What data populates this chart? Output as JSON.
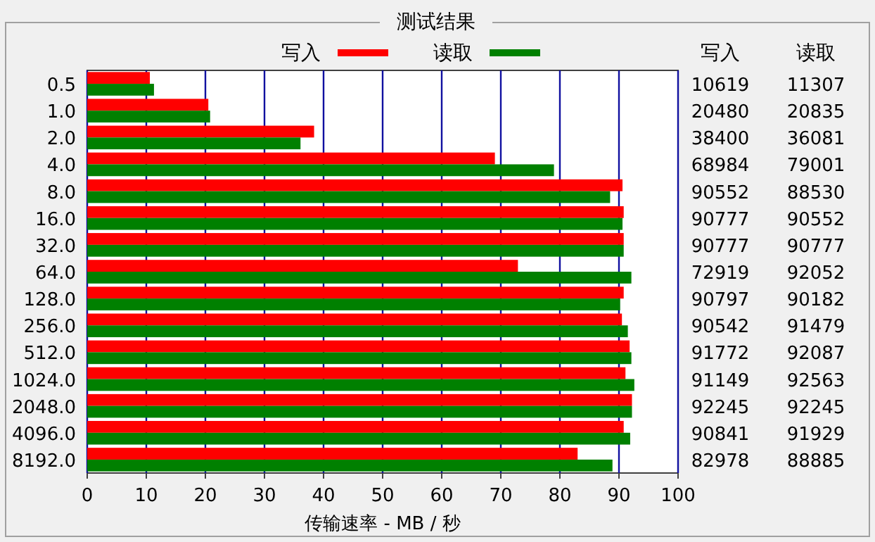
{
  "chart_data": {
    "type": "bar",
    "orientation": "horizontal",
    "title": "测试结果",
    "xlabel": "传输速率 - MB / 秒",
    "categories": [
      "0.5",
      "1.0",
      "2.0",
      "4.0",
      "8.0",
      "16.0",
      "32.0",
      "64.0",
      "128.0",
      "256.0",
      "512.0",
      "1024.0",
      "2048.0",
      "4096.0",
      "8192.0"
    ],
    "series": [
      {
        "name": "写入",
        "color": "#ff0000",
        "values": [
          10.6,
          20.5,
          38.4,
          69.0,
          90.6,
          90.8,
          90.8,
          72.9,
          90.8,
          90.5,
          91.8,
          91.1,
          92.2,
          90.8,
          83.0
        ]
      },
      {
        "name": "读取",
        "color": "#008000",
        "values": [
          11.3,
          20.8,
          36.1,
          79.0,
          88.5,
          90.6,
          90.8,
          92.1,
          90.2,
          91.5,
          92.1,
          92.6,
          92.2,
          91.9,
          88.9
        ]
      }
    ],
    "annotations": [
      "10619",
      "20480",
      "38400",
      "68984",
      "90552",
      "90777",
      "90777",
      "72919",
      "90797",
      "90542",
      "91772",
      "91149",
      "92245",
      "90841",
      "82978",
      "11307",
      "20835",
      "36081",
      "79001",
      "88530",
      "90552",
      "90777",
      "92052",
      "90182",
      "91479",
      "92087",
      "92563",
      "92245",
      "91929",
      "88885"
    ],
    "xlim": [
      0,
      100
    ],
    "xticks": [
      0,
      10,
      20,
      30,
      40,
      50,
      60,
      70,
      80,
      90,
      100
    ],
    "grid": "x",
    "legend": "top"
  }
}
